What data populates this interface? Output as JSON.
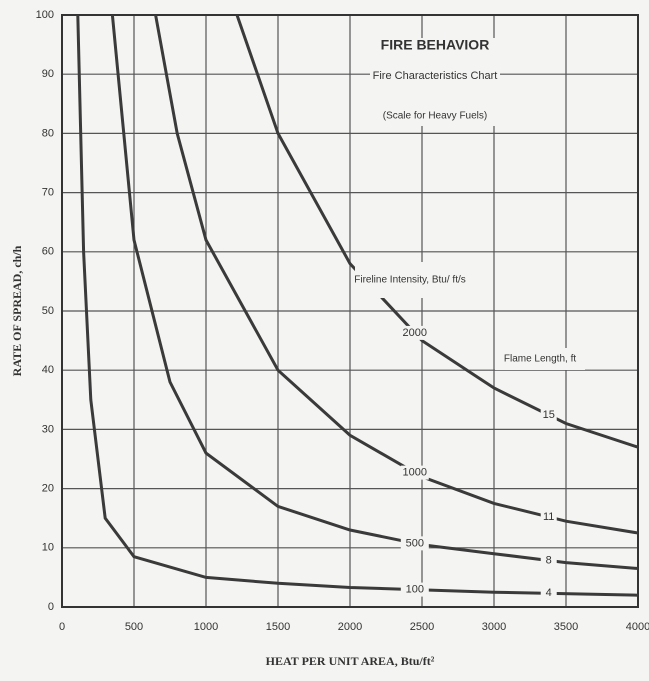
{
  "chart_data": {
    "type": "line",
    "title": "FIRE BEHAVIOR",
    "subtitle": "Fire Characteristics Chart",
    "note": "(Scale for Heavy Fuels)",
    "intensity_label": "Fireline Intensity, Btu/ ft/s",
    "flame_label": "Flame Length, ft",
    "x_label": "HEAT PER UNIT AREA, Btu/ft²",
    "y_label": "RATE OF SPREAD, ch/h",
    "xlim": [
      0,
      4000
    ],
    "ylim": [
      0,
      100
    ],
    "xticks": [
      0,
      500,
      1000,
      1500,
      2000,
      2500,
      3000,
      3500,
      4000
    ],
    "yticks": [
      0,
      10,
      20,
      30,
      40,
      50,
      60,
      70,
      80,
      90,
      100
    ],
    "grid": true,
    "series": [
      {
        "name": "100",
        "flame_length": "4",
        "color": "#3a3a3a",
        "x": [
          110,
          150,
          200,
          300,
          500,
          1000,
          1500,
          2000,
          3000,
          4000
        ],
        "values": [
          100,
          60,
          35,
          15,
          8.5,
          5,
          4,
          3.3,
          2.5,
          2
        ]
      },
      {
        "name": "500",
        "flame_length": "8",
        "color": "#3a3a3a",
        "x": [
          350,
          500,
          750,
          1000,
          1500,
          2000,
          2500,
          3000,
          3500,
          4000
        ],
        "values": [
          100,
          62,
          38,
          26,
          17,
          13,
          10.5,
          9,
          7.5,
          6.5
        ]
      },
      {
        "name": "1000",
        "flame_length": "11",
        "color": "#3a3a3a",
        "x": [
          650,
          800,
          1000,
          1500,
          2000,
          2500,
          3000,
          3500,
          4000
        ],
        "values": [
          100,
          80,
          62,
          40,
          29,
          22,
          17.5,
          14.5,
          12.5
        ]
      },
      {
        "name": "2000",
        "flame_length": "15",
        "color": "#3a3a3a",
        "x": [
          1215,
          1500,
          2000,
          2500,
          3000,
          3500,
          4000
        ],
        "values": [
          100,
          80,
          58,
          45,
          37,
          31,
          27
        ]
      }
    ]
  }
}
